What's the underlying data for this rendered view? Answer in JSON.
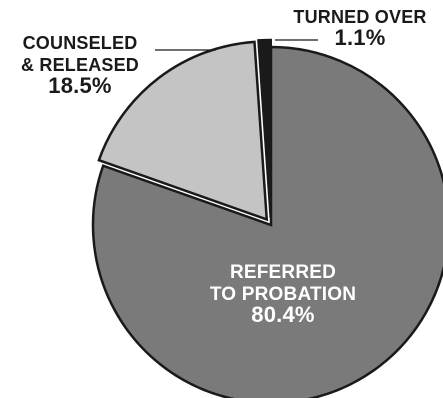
{
  "chart_data": {
    "type": "pie",
    "slices": [
      {
        "label_lines": [
          "REFERRED",
          "TO PROBATION"
        ],
        "value": 80.4,
        "value_label": "80.4%",
        "color": "#7a7a7a",
        "text_color": "#ffffff"
      },
      {
        "label_lines": [
          "COUNSELED",
          "& RELEASED"
        ],
        "value": 18.5,
        "value_label": "18.5%",
        "color": "#c4c4c4",
        "text_color": "#1a1a1a"
      },
      {
        "label_lines": [
          "TURNED OVER"
        ],
        "value": 1.1,
        "value_label": "1.1%",
        "color": "#1a1a1a",
        "text_color": "#1a1a1a"
      }
    ]
  }
}
